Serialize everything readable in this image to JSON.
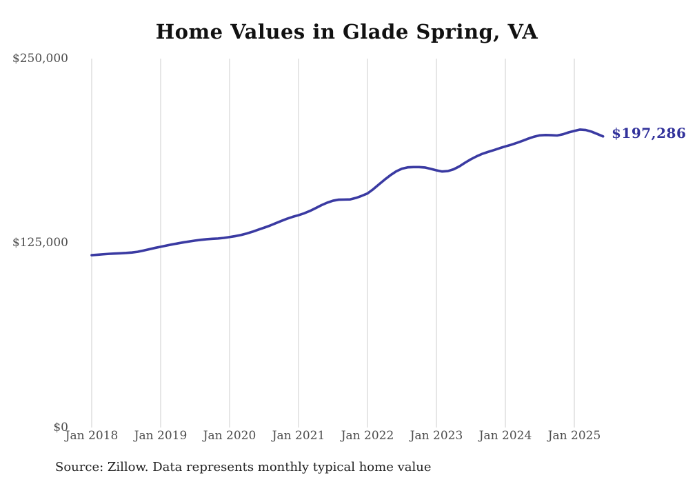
{
  "chart": {
    "title": "Home Values in Glade Spring, VA",
    "end_label": "$197,286",
    "source": "Source: Zillow. Data represents monthly typical home value",
    "line_color": "#3a3aa2",
    "end_label_color": "#32329b",
    "grid_color": "#cccccc",
    "tick_color": "#4d4d4d"
  },
  "chart_data": {
    "type": "line",
    "title": "Home Values in Glade Spring, VA",
    "xlabel": "",
    "ylabel": "",
    "ylim": [
      0,
      250000
    ],
    "grid": "vertical-only",
    "legend": false,
    "x_ticks": [
      "Jan 2018",
      "Jan 2019",
      "Jan 2020",
      "Jan 2021",
      "Jan 2022",
      "Jan 2023",
      "Jan 2024",
      "Jan 2025"
    ],
    "y_ticks": [
      "$0",
      "$125,000",
      "$250,000"
    ],
    "y_tick_values": [
      0,
      125000,
      250000
    ],
    "frequency": "monthly",
    "x_start": "Jan 2018",
    "x_end": "Jun 2025",
    "end_value": 197286,
    "annotation": "$197,286",
    "series": [
      {
        "name": "Typical home value",
        "values": [
          116800,
          117100,
          117400,
          117700,
          117900,
          118100,
          118300,
          118600,
          119100,
          119900,
          120800,
          121700,
          122500,
          123300,
          124100,
          124800,
          125500,
          126100,
          126700,
          127200,
          127600,
          127900,
          128100,
          128500,
          129100,
          129700,
          130500,
          131500,
          132700,
          134100,
          135400,
          136800,
          138400,
          140000,
          141500,
          142800,
          143900,
          145200,
          146800,
          148700,
          150700,
          152400,
          153700,
          154400,
          154500,
          154600,
          155600,
          157000,
          158600,
          161500,
          164800,
          168000,
          171000,
          173600,
          175400,
          176300,
          176500,
          176500,
          176200,
          175300,
          174300,
          173500,
          173800,
          175000,
          177000,
          179500,
          181800,
          183800,
          185500,
          186800,
          188000,
          189300,
          190500,
          191600,
          192900,
          194300,
          195800,
          197100,
          198000,
          198200,
          198100,
          197900,
          198700,
          200000,
          201000,
          201900,
          201600,
          200500,
          198900,
          197286
        ]
      }
    ]
  }
}
